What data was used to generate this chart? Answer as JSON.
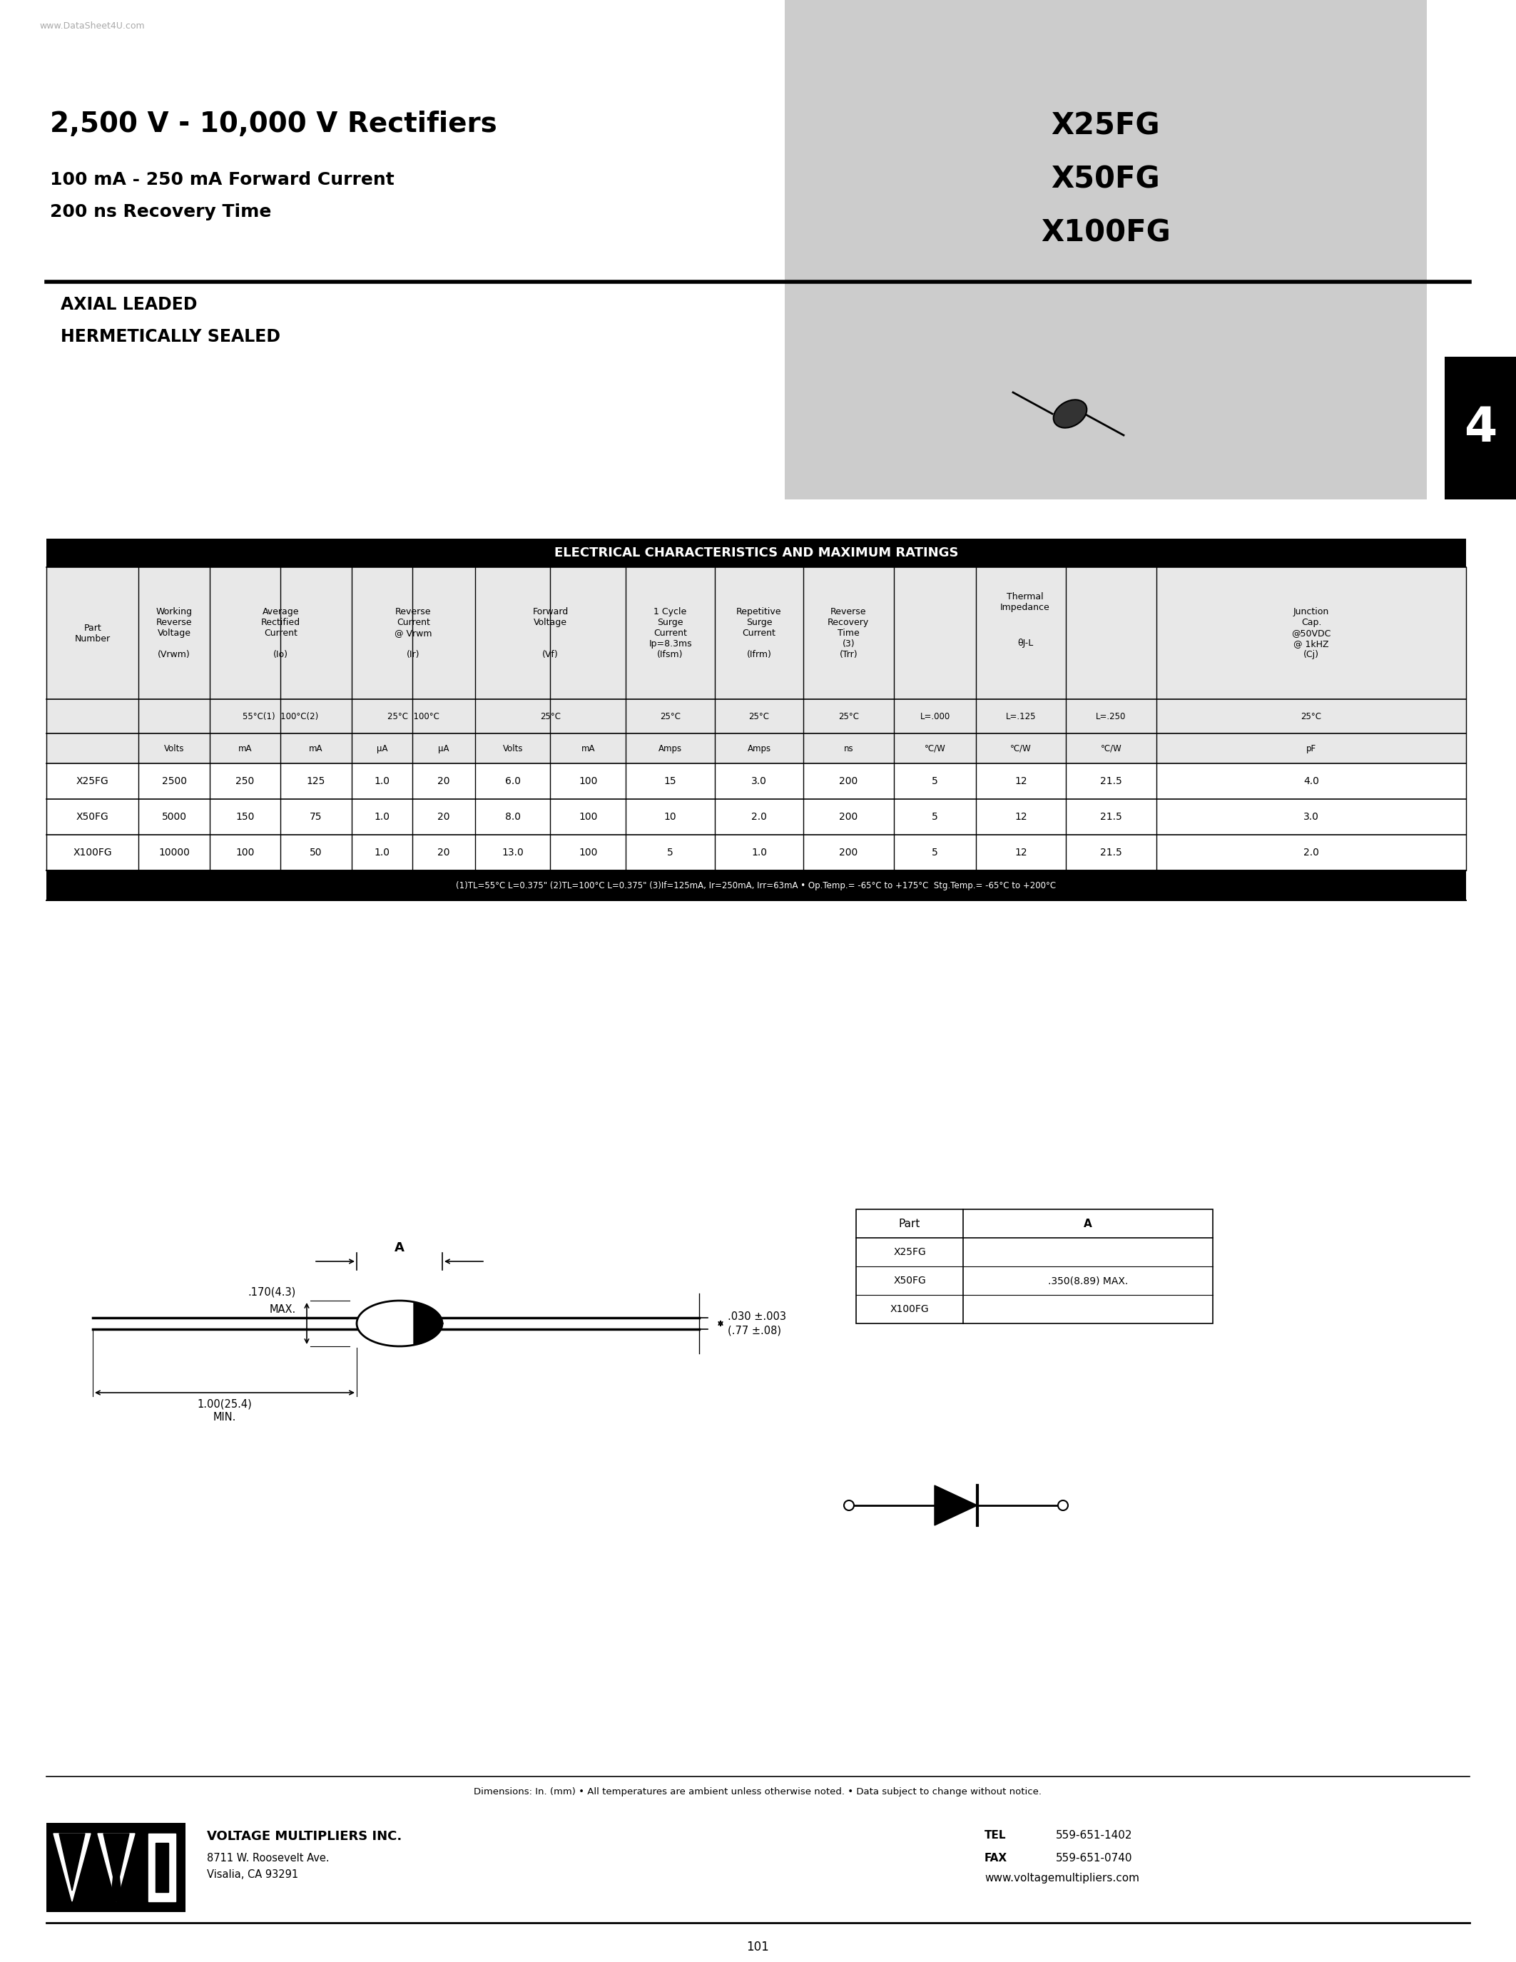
{
  "watermark": "www.DataSheet4U.com",
  "title_main": "2,500 V - 10,000 V Rectifiers",
  "title_sub1": "100 mA - 250 mA Forward Current",
  "title_sub2": "200 ns Recovery Time",
  "part_numbers": [
    "X25FG",
    "X50FG",
    "X100FG"
  ],
  "section_left1": "AXIAL LEADED",
  "section_left2": "HERMETICALLY SEALED",
  "table_title": "ELECTRICAL CHARACTERISTICS AND MAXIMUM RATINGS",
  "tab_number": "4",
  "data_rows": [
    [
      "X25FG",
      "2500",
      "250",
      "125",
      "1.0",
      "20",
      "6.0",
      "100",
      "15",
      "3.0",
      "200",
      "5",
      "12",
      "21.5",
      "4.0"
    ],
    [
      "X50FG",
      "5000",
      "150",
      "75",
      "1.0",
      "20",
      "8.0",
      "100",
      "10",
      "2.0",
      "200",
      "5",
      "12",
      "21.5",
      "3.0"
    ],
    [
      "X100FG",
      "10000",
      "100",
      "50",
      "1.0",
      "20",
      "13.0",
      "100",
      "5",
      "1.0",
      "200",
      "5",
      "12",
      "21.5",
      "2.0"
    ]
  ],
  "footnote": "(1)TL=55°C L=0.375\" (2)TL=100°C L=0.375\" (3)If=125mA, Ir=250mA, Irr=63mA • Op.Temp.= -65°C to +175°C  Stg.Temp.= -65°C to +200°C",
  "dim_note": "Dimensions: In. (mm) • All temperatures are ambient unless otherwise noted. • Data subject to change without notice.",
  "company": "VOLTAGE MULTIPLIERS INC.",
  "address1": "8711 W. Roosevelt Ave.",
  "address2": "Visalia, CA 93291",
  "tel_label": "TEL",
  "tel_num": "559-651-1402",
  "fax_label": "FAX",
  "fax_num": "559-651-0740",
  "website": "www.voltagemultipliers.com",
  "page_number": "101",
  "dim_170": ".170(4.3)",
  "dim_max": "MAX.",
  "dim_100": "1.00(25.4)",
  "dim_min": "MIN.",
  "dim_030": ".030 ±.003",
  "dim_077": "(.77 ±.08)",
  "dim_A_label": "A",
  "dim_table_parts": [
    "X25FG",
    "X50FG",
    "X100FG"
  ],
  "dim_table_A": ".350(8.89) MAX.",
  "background_color": "#ffffff",
  "gray_bg": "#cccccc",
  "header_bg": "#000000",
  "header_fg": "#ffffff",
  "tab_bg": "#000000",
  "tab_fg": "#ffffff"
}
